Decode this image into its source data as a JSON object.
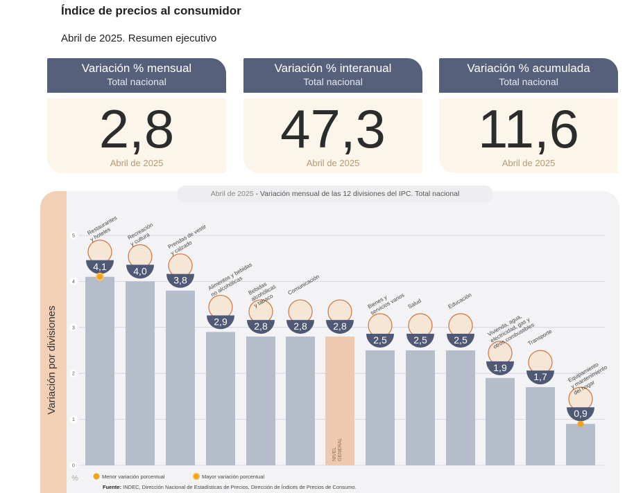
{
  "header": {
    "title": "Índice de precios al consumidor",
    "subtitle": "Abril de 2025. Resumen ejecutivo"
  },
  "cards": [
    {
      "heading": "Variación % mensual",
      "sub": "Total nacional",
      "value": "2,8",
      "period": "Abril de 2025"
    },
    {
      "heading": "Variación % interanual",
      "sub": "Total nacional",
      "value": "47,3",
      "period": "Abril de 2025"
    },
    {
      "heading": "Variación % acumulada",
      "sub": "Total nacional",
      "value": "11,6",
      "period": "Abril de 2025"
    }
  ],
  "chart_header": {
    "period": "Abril de 2025",
    "text": " - Variación mensual de las 12 divisiones del IPC. Total nacional"
  },
  "chart_data": {
    "type": "bar",
    "categories": [
      "Restaurantes y hoteles",
      "Recreación y cultura",
      "Prendas de vestir y calzado",
      "Alimentos y bebidas no alcohólicas",
      "Bebidas alcohólicas y tabaco",
      "Comunicación",
      "NIVEL GENERAL",
      "Bienes y servicios varios",
      "Salud",
      "Educación",
      "Vivienda, agua, electricidad, gas y otros combustibles",
      "Transporte",
      "Equipamiento y mantenimiento del hogar"
    ],
    "values": [
      4.1,
      4.0,
      3.8,
      2.9,
      2.8,
      2.8,
      2.8,
      2.5,
      2.5,
      2.5,
      1.9,
      1.7,
      0.9
    ],
    "value_labels": [
      "4,1",
      "4,0",
      "3,8",
      "2,9",
      "2,8",
      "2,8",
      "2,8",
      "2,5",
      "2,5",
      "2,5",
      "1,9",
      "1,7",
      "0,9"
    ],
    "highlight_index": 6,
    "max_index": 0,
    "min_index": 12,
    "ylabel": "Variación por divisiones",
    "yunit": "%",
    "ylim": [
      0,
      5
    ],
    "yticks": [
      "0",
      "1",
      "2",
      "3",
      "4",
      "5"
    ],
    "grid": true,
    "bar_color": "#b6bdca",
    "highlight_color": "#ecc9b0",
    "accent_color": "#f1a21c",
    "badge_color": "#4f5975"
  },
  "category_labels": [
    [
      "Restaurantes",
      "y hoteles"
    ],
    [
      "Recreación",
      "y cultura"
    ],
    [
      "Prendas de vestir",
      "y calzado"
    ],
    [
      "Alimentos y bebidas",
      "no alcohólicas"
    ],
    [
      "Bebidas",
      "alcohólicas",
      "y tabaco"
    ],
    [
      "Comunicación"
    ],
    [
      "NIVEL",
      "GENERAL"
    ],
    [
      "Bienes y",
      "servicios varios"
    ],
    [
      "Salud"
    ],
    [
      "Educación"
    ],
    [
      "Vivienda, agua,",
      "electricidad, gas y",
      "otros combustibles"
    ],
    [
      "Transporte"
    ],
    [
      "Equipamiento",
      "y mantenimiento",
      "del hogar"
    ]
  ],
  "icons": [
    "cutlery-icon",
    "ball-umbrella-icon",
    "shirt-icon",
    "food-icon",
    "bottle-glass-icon",
    "phone-icon",
    "basket-icon",
    "comb-scissors-icon",
    "first-aid-icon",
    "notebook-icon",
    "bulb-plug-icon",
    "bus-icon",
    "ac-unit-icon"
  ],
  "legend": {
    "min": "Menor variación porcentual",
    "max": "Mayor variación porcentual"
  },
  "source": {
    "label": "Fuente:",
    "text": " INDEC, Dirección Nacional de Estadísticas de Precios. Dirección de Índices de Precios de Consumo."
  }
}
